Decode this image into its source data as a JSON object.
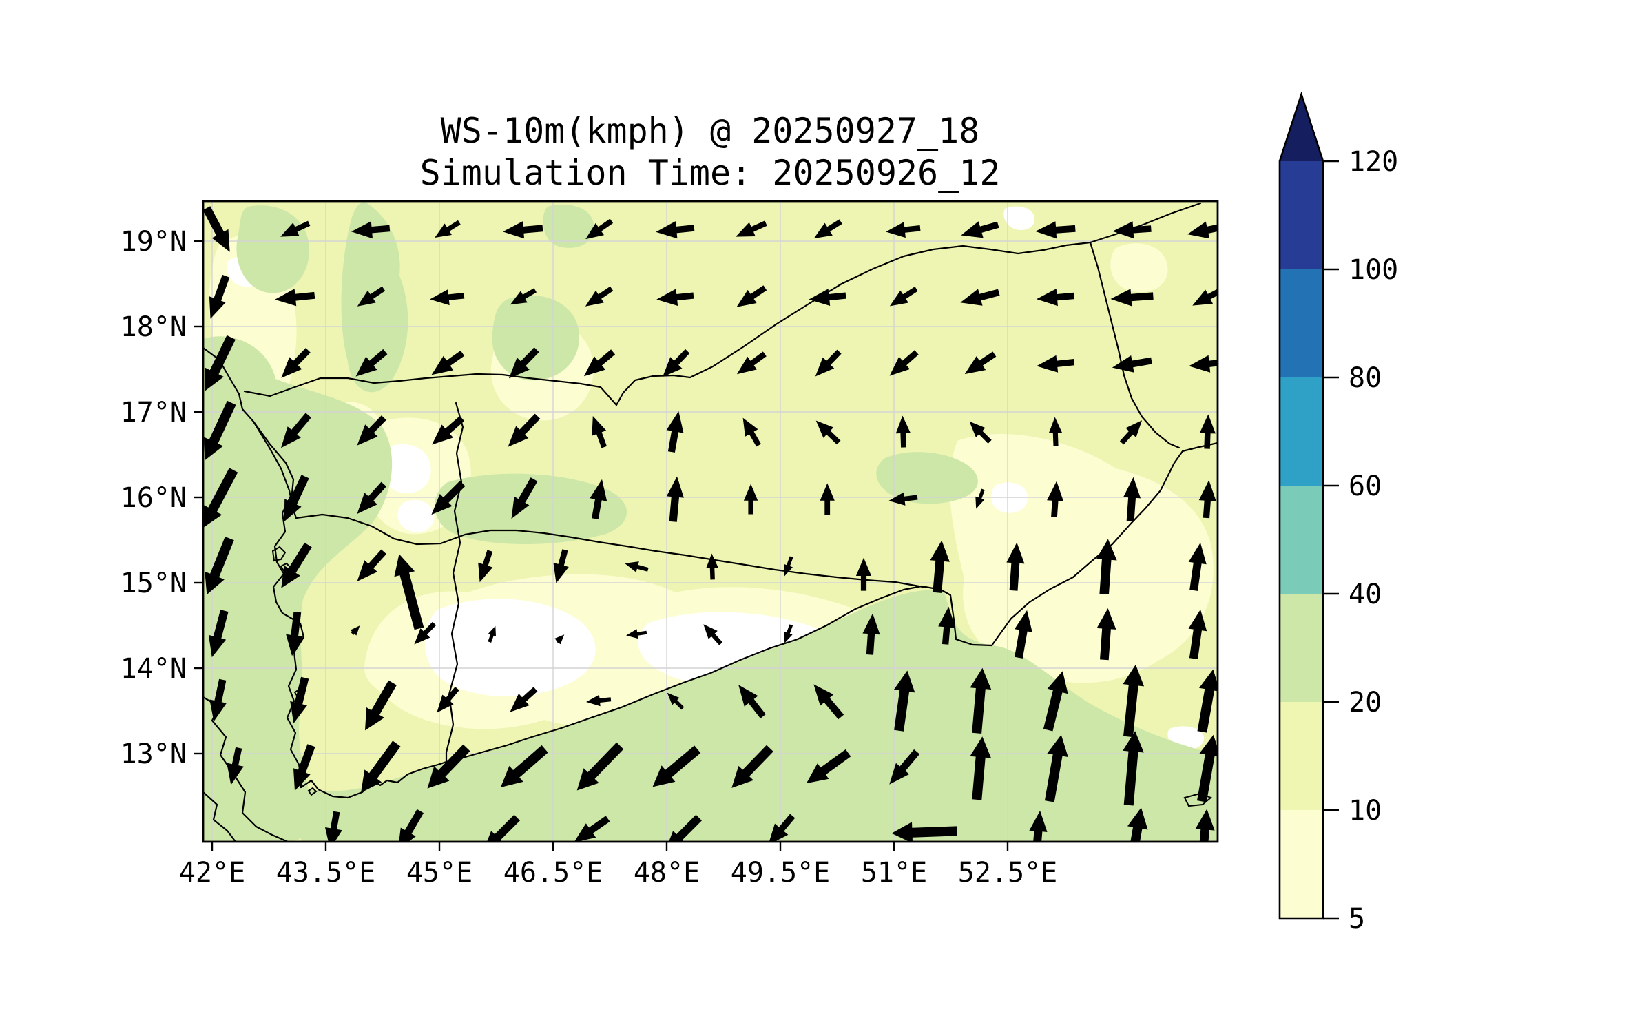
{
  "title": {
    "line1": "WS-10m(kmph) @ 20250927_18",
    "line2": "Simulation Time: 20250926_12"
  },
  "axes": {
    "x_ticks": [
      "42°E",
      "43.5°E",
      "45°E",
      "46.5°E",
      "48°E",
      "49.5°E",
      "51°E",
      "52.5°E"
    ],
    "y_ticks": [
      "19°N",
      "18°N",
      "17°N",
      "16°N",
      "15°N",
      "14°N",
      "13°N"
    ]
  },
  "colorbar": {
    "tick_labels": [
      "5",
      "10",
      "20",
      "40",
      "60",
      "80",
      "100",
      "120"
    ],
    "segment_colors": [
      "#fcfdd1",
      "#eff6b2",
      "#cde7a8",
      "#7accb9",
      "#2fa0c6",
      "#2272b4",
      "#263c95"
    ],
    "over_color": "#151e5e"
  },
  "chart_data": {
    "type": "map-quiver-contourf",
    "title": "WS-10m(kmph) @ 20250927_18",
    "subtitle": "Simulation Time: 20250926_12",
    "variable": "10-metre wind speed",
    "units": "kmph",
    "lon_range": [
      41.9,
      55.3
    ],
    "lat_range": [
      12.0,
      19.5
    ],
    "contour_levels": [
      5,
      10,
      20,
      40,
      60,
      80,
      100,
      120
    ],
    "colormap": "YlGnBu",
    "fill_colors": {
      "lt5": "#ffffff",
      "b5_10": "#fcfdd1",
      "b10_20": "#eef5b2",
      "b20_40": "#cde7a8",
      "b40_60": "#7accb9",
      "b60_80": "#2fa0c6",
      "b80_100": "#2272b4",
      "b100_120": "#263c95",
      "over120": "#151e5e"
    },
    "grid_color": "#d4d4d4",
    "arrow_color": "#000000",
    "arrows_format": [
      "lon",
      "lat",
      "dir_deg_ccw_from_east",
      "length_px"
    ],
    "arrows": [
      [
        42.08,
        19.13,
        -62,
        72
      ],
      [
        43.09,
        19.13,
        205,
        46
      ],
      [
        44.09,
        19.13,
        185,
        56
      ],
      [
        45.1,
        19.13,
        212,
        42
      ],
      [
        46.1,
        19.13,
        185,
        58
      ],
      [
        47.1,
        19.13,
        215,
        46
      ],
      [
        48.11,
        19.13,
        186,
        56
      ],
      [
        49.11,
        19.13,
        204,
        48
      ],
      [
        50.12,
        19.13,
        212,
        46
      ],
      [
        51.12,
        19.13,
        186,
        50
      ],
      [
        52.13,
        19.13,
        196,
        56
      ],
      [
        53.13,
        19.13,
        184,
        58
      ],
      [
        54.14,
        19.13,
        184,
        56
      ],
      [
        55.14,
        19.13,
        192,
        60
      ],
      [
        42.08,
        18.34,
        250,
        66
      ],
      [
        43.09,
        18.34,
        186,
        58
      ],
      [
        44.09,
        18.34,
        214,
        46
      ],
      [
        45.1,
        18.34,
        186,
        50
      ],
      [
        46.1,
        18.34,
        210,
        42
      ],
      [
        47.1,
        18.34,
        214,
        46
      ],
      [
        48.11,
        18.34,
        186,
        54
      ],
      [
        49.11,
        18.34,
        214,
        50
      ],
      [
        50.12,
        18.34,
        186,
        54
      ],
      [
        51.12,
        18.34,
        213,
        46
      ],
      [
        52.13,
        18.34,
        195,
        58
      ],
      [
        53.13,
        18.34,
        185,
        55
      ],
      [
        54.14,
        18.34,
        184,
        62
      ],
      [
        55.14,
        18.34,
        208,
        50
      ],
      [
        42.08,
        17.56,
        244,
        86
      ],
      [
        43.09,
        17.56,
        226,
        56
      ],
      [
        44.09,
        17.56,
        220,
        56
      ],
      [
        45.1,
        17.56,
        215,
        55
      ],
      [
        46.1,
        17.56,
        226,
        58
      ],
      [
        47.1,
        17.56,
        220,
        55
      ],
      [
        48.11,
        17.56,
        226,
        52
      ],
      [
        49.11,
        17.56,
        216,
        50
      ],
      [
        50.12,
        17.56,
        226,
        50
      ],
      [
        51.12,
        17.56,
        221,
        52
      ],
      [
        52.13,
        17.56,
        214,
        52
      ],
      [
        53.13,
        17.56,
        186,
        55
      ],
      [
        54.14,
        17.56,
        190,
        58
      ],
      [
        55.14,
        17.56,
        186,
        55
      ],
      [
        42.08,
        16.77,
        245,
        92
      ],
      [
        43.09,
        16.77,
        230,
        62
      ],
      [
        44.09,
        16.77,
        226,
        56
      ],
      [
        45.1,
        16.77,
        221,
        58
      ],
      [
        46.1,
        16.77,
        226,
        62
      ],
      [
        47.1,
        16.77,
        110,
        48
      ],
      [
        48.11,
        16.77,
        80,
        60
      ],
      [
        49.11,
        16.77,
        120,
        46
      ],
      [
        50.12,
        16.77,
        136,
        46
      ],
      [
        51.12,
        16.77,
        92,
        46
      ],
      [
        52.13,
        16.77,
        135,
        42
      ],
      [
        53.13,
        16.77,
        92,
        42
      ],
      [
        54.14,
        16.77,
        48,
        44
      ],
      [
        55.14,
        16.77,
        88,
        50
      ],
      [
        42.08,
        15.98,
        242,
        95
      ],
      [
        43.09,
        15.98,
        245,
        72
      ],
      [
        44.09,
        15.98,
        228,
        58
      ],
      [
        45.1,
        15.98,
        225,
        64
      ],
      [
        46.1,
        15.98,
        240,
        66
      ],
      [
        47.1,
        15.98,
        80,
        58
      ],
      [
        48.11,
        15.98,
        85,
        66
      ],
      [
        49.11,
        15.98,
        90,
        44
      ],
      [
        50.12,
        15.98,
        90,
        46
      ],
      [
        51.12,
        15.98,
        187,
        42
      ],
      [
        52.13,
        15.98,
        250,
        30
      ],
      [
        53.13,
        15.98,
        86,
        52
      ],
      [
        54.14,
        15.98,
        86,
        64
      ],
      [
        55.14,
        15.98,
        86,
        55
      ],
      [
        42.08,
        15.19,
        248,
        88
      ],
      [
        43.09,
        15.19,
        238,
        74
      ],
      [
        44.09,
        15.19,
        228,
        58
      ],
      [
        44.6,
        14.9,
        105,
        112
      ],
      [
        45.6,
        15.19,
        252,
        48
      ],
      [
        46.6,
        15.19,
        255,
        50
      ],
      [
        47.6,
        15.19,
        165,
        35
      ],
      [
        48.6,
        15.19,
        92,
        38
      ],
      [
        49.6,
        15.19,
        250,
        30
      ],
      [
        50.6,
        15.1,
        90,
        48
      ],
      [
        51.6,
        15.19,
        85,
        76
      ],
      [
        52.6,
        15.19,
        86,
        70
      ],
      [
        53.8,
        15.19,
        86,
        80
      ],
      [
        55.0,
        15.19,
        82,
        70
      ],
      [
        42.08,
        14.4,
        255,
        70
      ],
      [
        43.09,
        14.4,
        263,
        64
      ],
      [
        43.9,
        14.45,
        48,
        16
      ],
      [
        44.8,
        14.4,
        226,
        42
      ],
      [
        45.7,
        14.4,
        70,
        25
      ],
      [
        46.6,
        14.35,
        45,
        15
      ],
      [
        47.6,
        14.4,
        188,
        30
      ],
      [
        48.6,
        14.4,
        132,
        38
      ],
      [
        49.6,
        14.4,
        250,
        28
      ],
      [
        50.7,
        14.4,
        86,
        60
      ],
      [
        51.7,
        14.5,
        85,
        55
      ],
      [
        52.7,
        14.4,
        80,
        70
      ],
      [
        53.8,
        14.4,
        86,
        75
      ],
      [
        55.0,
        14.4,
        82,
        72
      ],
      [
        42.08,
        13.62,
        258,
        62
      ],
      [
        43.15,
        13.62,
        256,
        68
      ],
      [
        44.2,
        13.55,
        240,
        80
      ],
      [
        45.1,
        13.62,
        230,
        46
      ],
      [
        46.1,
        13.62,
        222,
        50
      ],
      [
        47.1,
        13.62,
        186,
        36
      ],
      [
        48.11,
        13.62,
        135,
        32
      ],
      [
        49.11,
        13.62,
        128,
        58
      ],
      [
        50.12,
        13.62,
        130,
        62
      ],
      [
        51.12,
        13.62,
        82,
        88
      ],
      [
        52.13,
        13.62,
        85,
        95
      ],
      [
        53.13,
        13.62,
        76,
        88
      ],
      [
        54.14,
        13.62,
        84,
        105
      ],
      [
        55.14,
        13.62,
        80,
        92
      ],
      [
        42.3,
        12.85,
        258,
        55
      ],
      [
        43.2,
        12.83,
        250,
        70
      ],
      [
        44.2,
        12.83,
        234,
        88
      ],
      [
        45.1,
        12.83,
        226,
        82
      ],
      [
        46.1,
        12.83,
        221,
        85
      ],
      [
        47.1,
        12.83,
        226,
        90
      ],
      [
        48.11,
        12.83,
        220,
        85
      ],
      [
        49.11,
        12.83,
        226,
        80
      ],
      [
        50.12,
        12.83,
        216,
        75
      ],
      [
        51.12,
        12.83,
        230,
        62
      ],
      [
        52.13,
        12.83,
        85,
        92
      ],
      [
        53.13,
        12.83,
        80,
        98
      ],
      [
        54.14,
        12.83,
        85,
        108
      ],
      [
        55.14,
        12.83,
        80,
        98
      ],
      [
        43.6,
        12.1,
        260,
        55
      ],
      [
        44.6,
        12.1,
        240,
        65
      ],
      [
        45.8,
        12.05,
        225,
        70
      ],
      [
        47.0,
        12.1,
        215,
        60
      ],
      [
        48.2,
        12.05,
        225,
        70
      ],
      [
        49.5,
        12.1,
        230,
        55
      ],
      [
        51.4,
        12.08,
        182,
        95
      ],
      [
        52.9,
        12.05,
        85,
        70
      ],
      [
        54.2,
        12.05,
        80,
        80
      ],
      [
        55.1,
        12.05,
        85,
        75
      ]
    ]
  }
}
